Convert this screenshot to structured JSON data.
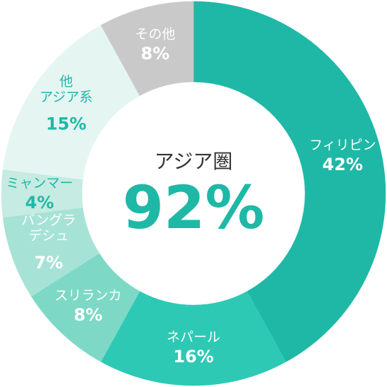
{
  "chart_data": {
    "type": "donut",
    "center_title": "アジア圏",
    "center_text": "92%",
    "center_color": "#1fb8a6",
    "categories": [
      "フィリピン",
      "ネパール",
      "スリランカ",
      "バングラ\nデシュ",
      "ミャンマー",
      "他\nアジア系",
      "その他"
    ],
    "values": [
      42,
      16,
      8,
      7,
      4,
      15,
      8
    ],
    "value_labels": [
      "42%",
      "16%",
      "8%",
      "7%",
      "4%",
      "15%",
      "8%"
    ],
    "colors": [
      "#1fb8a6",
      "#2ec9b5",
      "#7dd9c6",
      "#a6e3d6",
      "#c5ebe2",
      "#e5f5f2",
      "#c9c9c9"
    ],
    "label_colors": [
      "#ffffff",
      "#ffffff",
      "#ffffff",
      "#ffffff",
      "#1fb8a6",
      "#1fb8a6",
      "#ffffff"
    ]
  }
}
